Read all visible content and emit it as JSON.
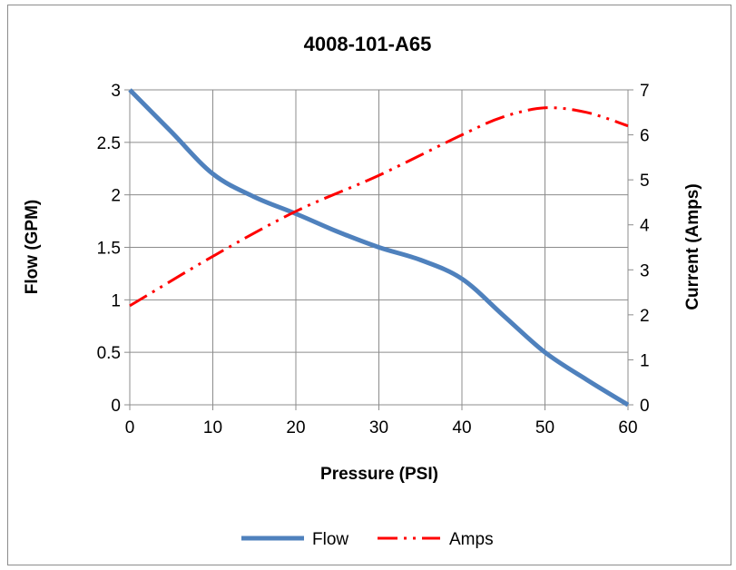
{
  "chart_data": {
    "type": "line",
    "title": "4008-101-A65",
    "xlabel": "Pressure (PSI)",
    "ylabel": "Flow (GPM)",
    "y2label": "Current (Amps)",
    "xlim": [
      0,
      60
    ],
    "ylim": [
      0,
      3
    ],
    "y2lim": [
      0,
      7
    ],
    "x_ticks": [
      "0",
      "10",
      "20",
      "30",
      "40",
      "50",
      "60"
    ],
    "y_ticks": [
      "0",
      "0.5",
      "1",
      "1.5",
      "2",
      "2.5",
      "3"
    ],
    "y2_ticks": [
      "0",
      "1",
      "2",
      "3",
      "4",
      "5",
      "6",
      "7"
    ],
    "grid": true,
    "legend": "bottom",
    "series": [
      {
        "name": "Flow",
        "axis": "left",
        "color": "#4f81bd",
        "style": "solid",
        "x": [
          0,
          5,
          10,
          15,
          20,
          25,
          30,
          35,
          40,
          45,
          50,
          55,
          60
        ],
        "y": [
          3.0,
          2.6,
          2.2,
          1.98,
          1.82,
          1.65,
          1.5,
          1.38,
          1.2,
          0.85,
          0.5,
          0.24,
          0.0
        ]
      },
      {
        "name": "Amps",
        "axis": "right",
        "color": "#ff0000",
        "style": "dash-dot-dot",
        "x": [
          0,
          10,
          20,
          30,
          40,
          45,
          50,
          55,
          60
        ],
        "y": [
          2.2,
          3.3,
          4.3,
          5.1,
          6.0,
          6.4,
          6.6,
          6.5,
          6.2
        ]
      }
    ]
  }
}
